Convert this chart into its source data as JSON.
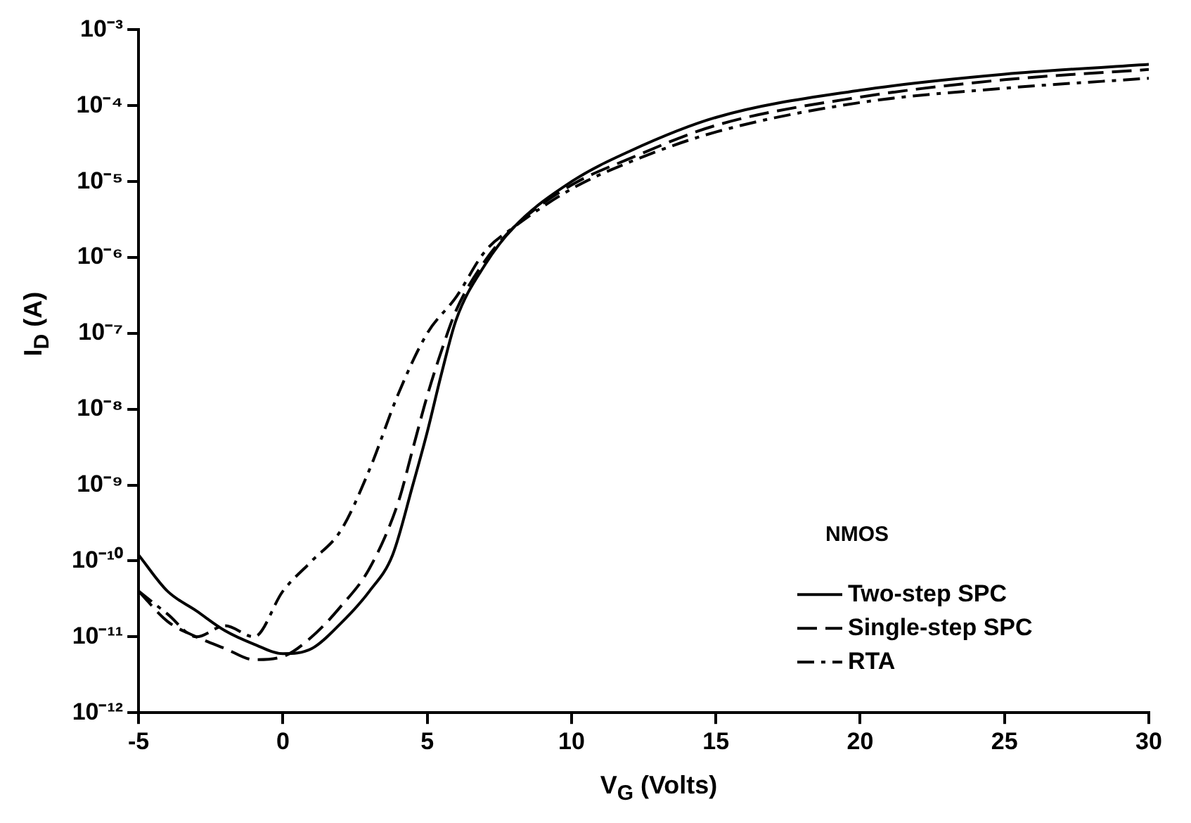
{
  "chart_data": {
    "type": "line",
    "xlabel": "V$_{G}$ (Volts)",
    "ylabel": "I$_{D}$ (A)",
    "legend_title": "NMOS",
    "log": "y",
    "grid": false,
    "legend": "bottom right",
    "marker": "none",
    "xlim": [
      -5,
      30
    ],
    "xticks": [
      -5,
      0,
      5,
      10,
      15,
      20,
      25,
      30
    ],
    "ylim": [
      1e-12,
      0.001
    ],
    "yticks": [
      {
        "value": 1e-12,
        "label": "10⁻¹²"
      },
      {
        "value": 1e-11,
        "label": "10⁻¹¹"
      },
      {
        "value": 1e-10,
        "label": "10⁻¹⁰"
      },
      {
        "value": 1e-09,
        "label": "10⁻⁹"
      },
      {
        "value": 1e-08,
        "label": "10⁻⁸"
      },
      {
        "value": 1e-07,
        "label": "10⁻⁷"
      },
      {
        "value": 1e-06,
        "label": "10⁻⁶"
      },
      {
        "value": 1e-05,
        "label": "10⁻⁵"
      },
      {
        "value": 0.0001,
        "label": "10⁻⁴"
      },
      {
        "value": 0.001,
        "label": "10⁻³"
      }
    ],
    "series": [
      {
        "name": "Two-step SPC",
        "color": "#000000",
        "line_style": "solid",
        "x": [
          -5,
          -4,
          -3,
          -2,
          -1,
          0,
          1,
          2,
          3,
          3.8,
          4.5,
          5,
          5.5,
          6,
          7,
          8,
          10,
          12,
          15,
          20,
          25,
          30
        ],
        "values": [
          1.2e-10,
          4e-11,
          2.2e-11,
          1.2e-11,
          8e-12,
          6e-12,
          7e-12,
          1.5e-11,
          4e-11,
          1.2e-10,
          1e-09,
          5e-09,
          3e-08,
          1.5e-07,
          8e-07,
          2.5e-06,
          1e-05,
          2.5e-05,
          7e-05,
          0.00016,
          0.00026,
          0.00035
        ]
      },
      {
        "name": "Single-step SPC",
        "color": "#000000",
        "line_style": "dashed",
        "x": [
          -5,
          -4,
          -3,
          -2,
          -1,
          0,
          1,
          2,
          3,
          4,
          4.5,
          5,
          5.5,
          6,
          7,
          8,
          10,
          12,
          15,
          20,
          25,
          30
        ],
        "values": [
          4e-11,
          1.6e-11,
          1e-11,
          7e-12,
          5e-12,
          5.5e-12,
          1e-11,
          2.5e-11,
          8e-11,
          6e-10,
          3e-09,
          1.5e-08,
          6e-08,
          2e-07,
          9e-07,
          2.5e-06,
          9e-06,
          2e-05,
          5.5e-05,
          0.00013,
          0.00022,
          0.0003
        ]
      },
      {
        "name": "RTA",
        "color": "#000000",
        "line_style": "dashdot",
        "x": [
          -5,
          -4,
          -3,
          -2,
          -1,
          0,
          1,
          2,
          3,
          4,
          5,
          6,
          7,
          8,
          10,
          12,
          15,
          20,
          25,
          30
        ],
        "values": [
          4e-11,
          2e-11,
          1e-11,
          1.4e-11,
          1e-11,
          4e-11,
          1e-10,
          2.5e-10,
          1.6e-09,
          1.6e-08,
          1e-07,
          3e-07,
          1.2e-06,
          2.5e-06,
          8e-06,
          1.8e-05,
          4.5e-05,
          0.00011,
          0.00017,
          0.00023
        ]
      }
    ]
  }
}
